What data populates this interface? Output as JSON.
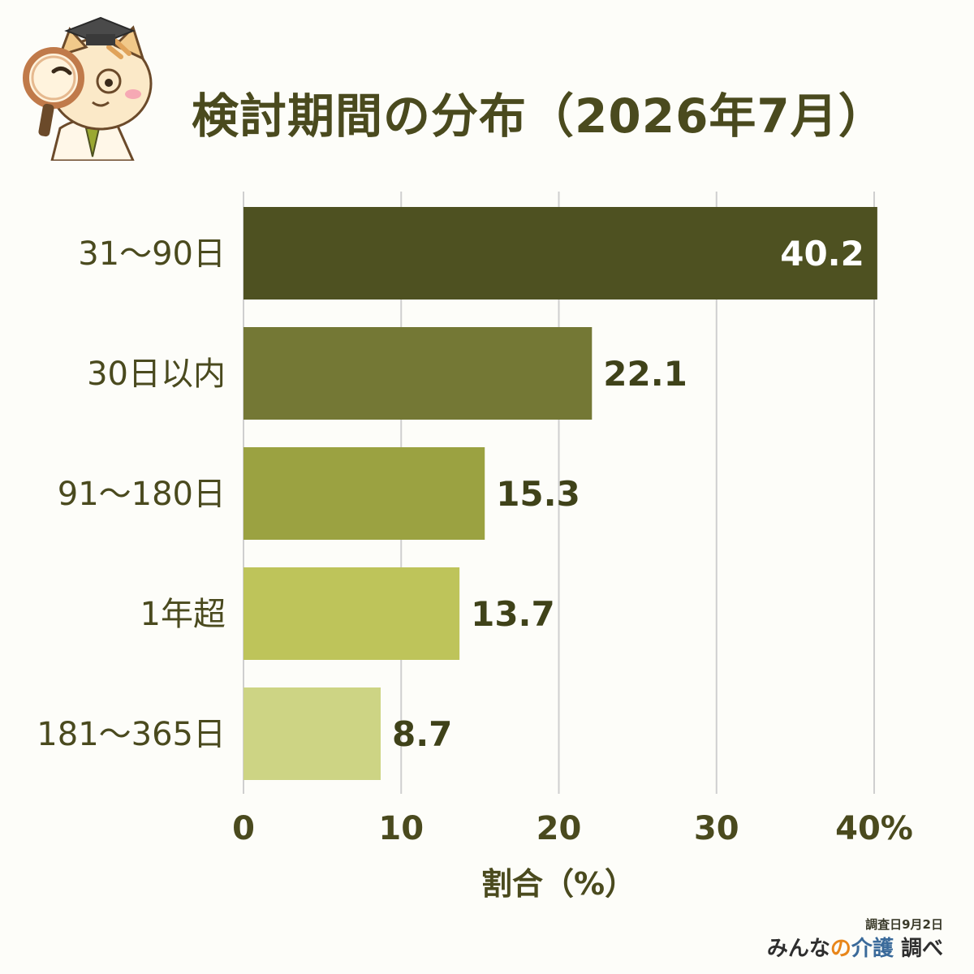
{
  "title": "検討期間の分布（2026年7月）",
  "chart_data": {
    "type": "bar",
    "orientation": "horizontal",
    "title": "検討期間の分布（2026年7月）",
    "categories": [
      "31〜90日",
      "30日以内",
      "91〜180日",
      "1年超",
      "181〜365日"
    ],
    "values": [
      40.2,
      22.1,
      15.3,
      13.7,
      8.7
    ],
    "colors": [
      "#4e5121",
      "#747835",
      "#9ba241",
      "#bec45a",
      "#cdd484"
    ],
    "value_label_colors": [
      "#ffffff",
      "#3f4219",
      "#3f4219",
      "#3f4219",
      "#3f4219"
    ],
    "xlabel": "割合（%）",
    "ylabel": "",
    "xlim": [
      0,
      40
    ],
    "x_ticks": [
      "0",
      "10",
      "20",
      "30",
      "40%"
    ],
    "grid": true
  },
  "footer": {
    "survey_date": "調査日9月2日",
    "brand_prefix": "みんな",
    "brand_no": "の",
    "brand_care": "介護",
    "brand_suffix": "調べ"
  }
}
